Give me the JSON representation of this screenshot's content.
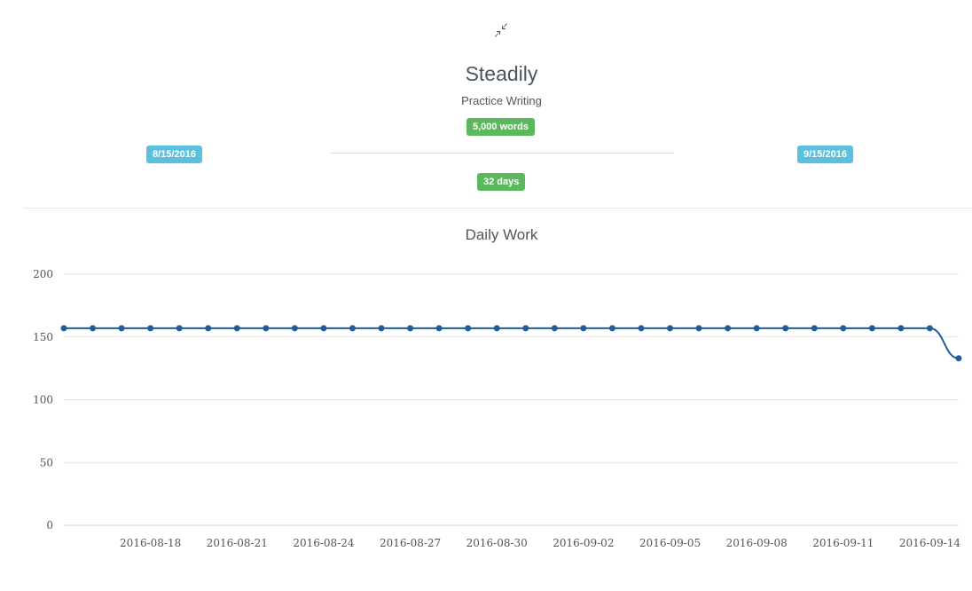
{
  "goal": {
    "title": "Steadily",
    "subtitle": "Practice Writing",
    "words_badge": "5,000 words",
    "days_badge": "32 days",
    "start_date": "8/15/2016",
    "end_date": "9/15/2016",
    "collapse_icon": "compress-arrows-icon"
  },
  "chart_title": "Daily Work",
  "chart_data": {
    "type": "line",
    "title": "Daily Work",
    "xlabel": "",
    "ylabel": "",
    "ylim": [
      0,
      200
    ],
    "yticks": [
      0,
      50,
      100,
      150,
      200
    ],
    "x_start": "2016-08-15",
    "x_end": "2016-09-15",
    "xtick_labels": [
      "2016-08-18",
      "2016-08-21",
      "2016-08-24",
      "2016-08-27",
      "2016-08-30",
      "2016-09-02",
      "2016-09-05",
      "2016-09-08",
      "2016-09-11",
      "2016-09-14"
    ],
    "grid": true,
    "legend": "none",
    "series": [
      {
        "color": "#1f5e9e",
        "x": [
          "2016-08-15",
          "2016-08-16",
          "2016-08-17",
          "2016-08-18",
          "2016-08-19",
          "2016-08-20",
          "2016-08-21",
          "2016-08-22",
          "2016-08-23",
          "2016-08-24",
          "2016-08-25",
          "2016-08-26",
          "2016-08-27",
          "2016-08-28",
          "2016-08-29",
          "2016-08-30",
          "2016-08-31",
          "2016-09-01",
          "2016-09-02",
          "2016-09-03",
          "2016-09-04",
          "2016-09-05",
          "2016-09-06",
          "2016-09-07",
          "2016-09-08",
          "2016-09-09",
          "2016-09-10",
          "2016-09-11",
          "2016-09-12",
          "2016-09-13",
          "2016-09-14",
          "2016-09-15"
        ],
        "values": [
          157,
          157,
          157,
          157,
          157,
          157,
          157,
          157,
          157,
          157,
          157,
          157,
          157,
          157,
          157,
          157,
          157,
          157,
          157,
          157,
          157,
          157,
          157,
          157,
          157,
          157,
          157,
          157,
          157,
          157,
          157,
          133
        ]
      }
    ]
  }
}
